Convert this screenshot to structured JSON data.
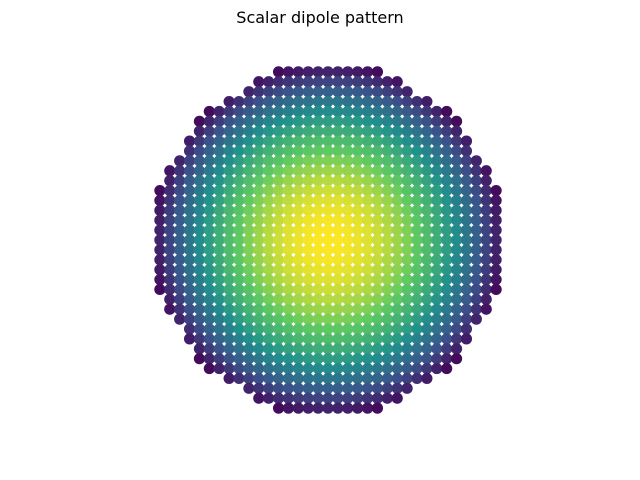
{
  "chart_data": {
    "type": "scatter",
    "title": "Scalar dipole pattern",
    "xlabel": "",
    "ylabel": "",
    "axes_visible": false,
    "grid": false,
    "colormap": "viridis",
    "colormap_stops": [
      "#440154",
      "#3b528b",
      "#21918c",
      "#5ec962",
      "#fde725"
    ],
    "domain": "dodecagon",
    "grid_points_per_side": 37,
    "field": {
      "description_values": "value = 1 - r^2 near center, darkest at polygon corners",
      "peak_value": 1.0,
      "edge_value": 0.0
    }
  }
}
